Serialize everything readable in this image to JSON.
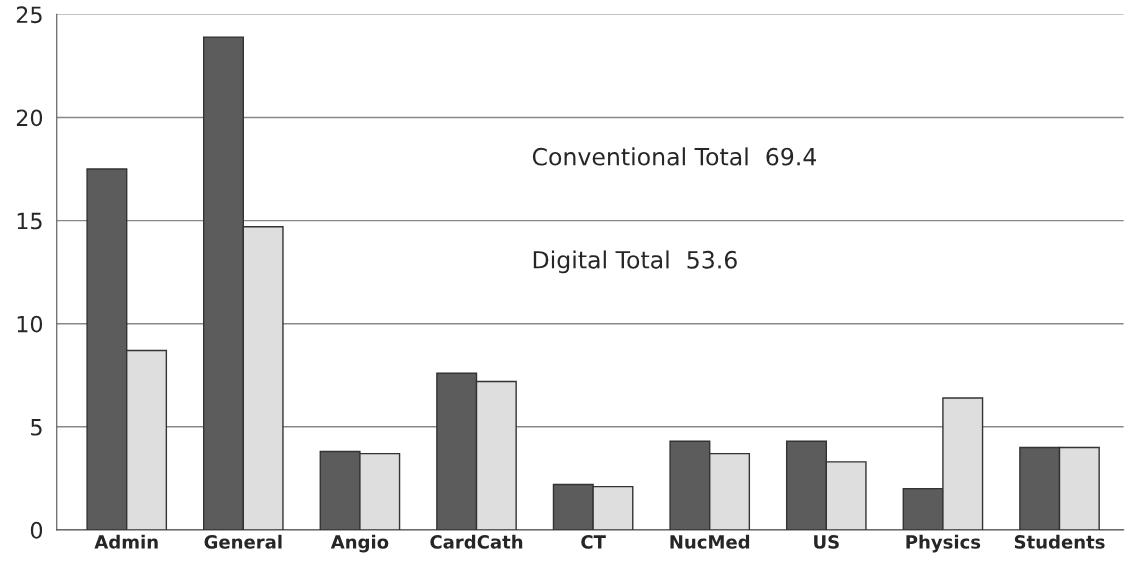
{
  "chart_data": {
    "type": "bar",
    "categories": [
      "Admin",
      "General",
      "Angio",
      "CardCath",
      "CT",
      "NucMed",
      "US",
      "Physics",
      "Students"
    ],
    "series": [
      {
        "color": "#5c5c5c",
        "values": [
          17.5,
          23.9,
          3.8,
          7.6,
          2.2,
          4.3,
          4.3,
          2.0,
          4.0
        ]
      },
      {
        "color": "#dedede",
        "values": [
          8.7,
          14.7,
          3.7,
          7.2,
          2.1,
          3.7,
          3.3,
          6.4,
          4.0
        ]
      }
    ],
    "ylim": [
      0,
      25
    ],
    "yticks": [
      0,
      5,
      10,
      15,
      20,
      25
    ],
    "grid": "y",
    "annotations": [
      "Conventional Total  69.4",
      "Digital Total  53.6"
    ]
  }
}
